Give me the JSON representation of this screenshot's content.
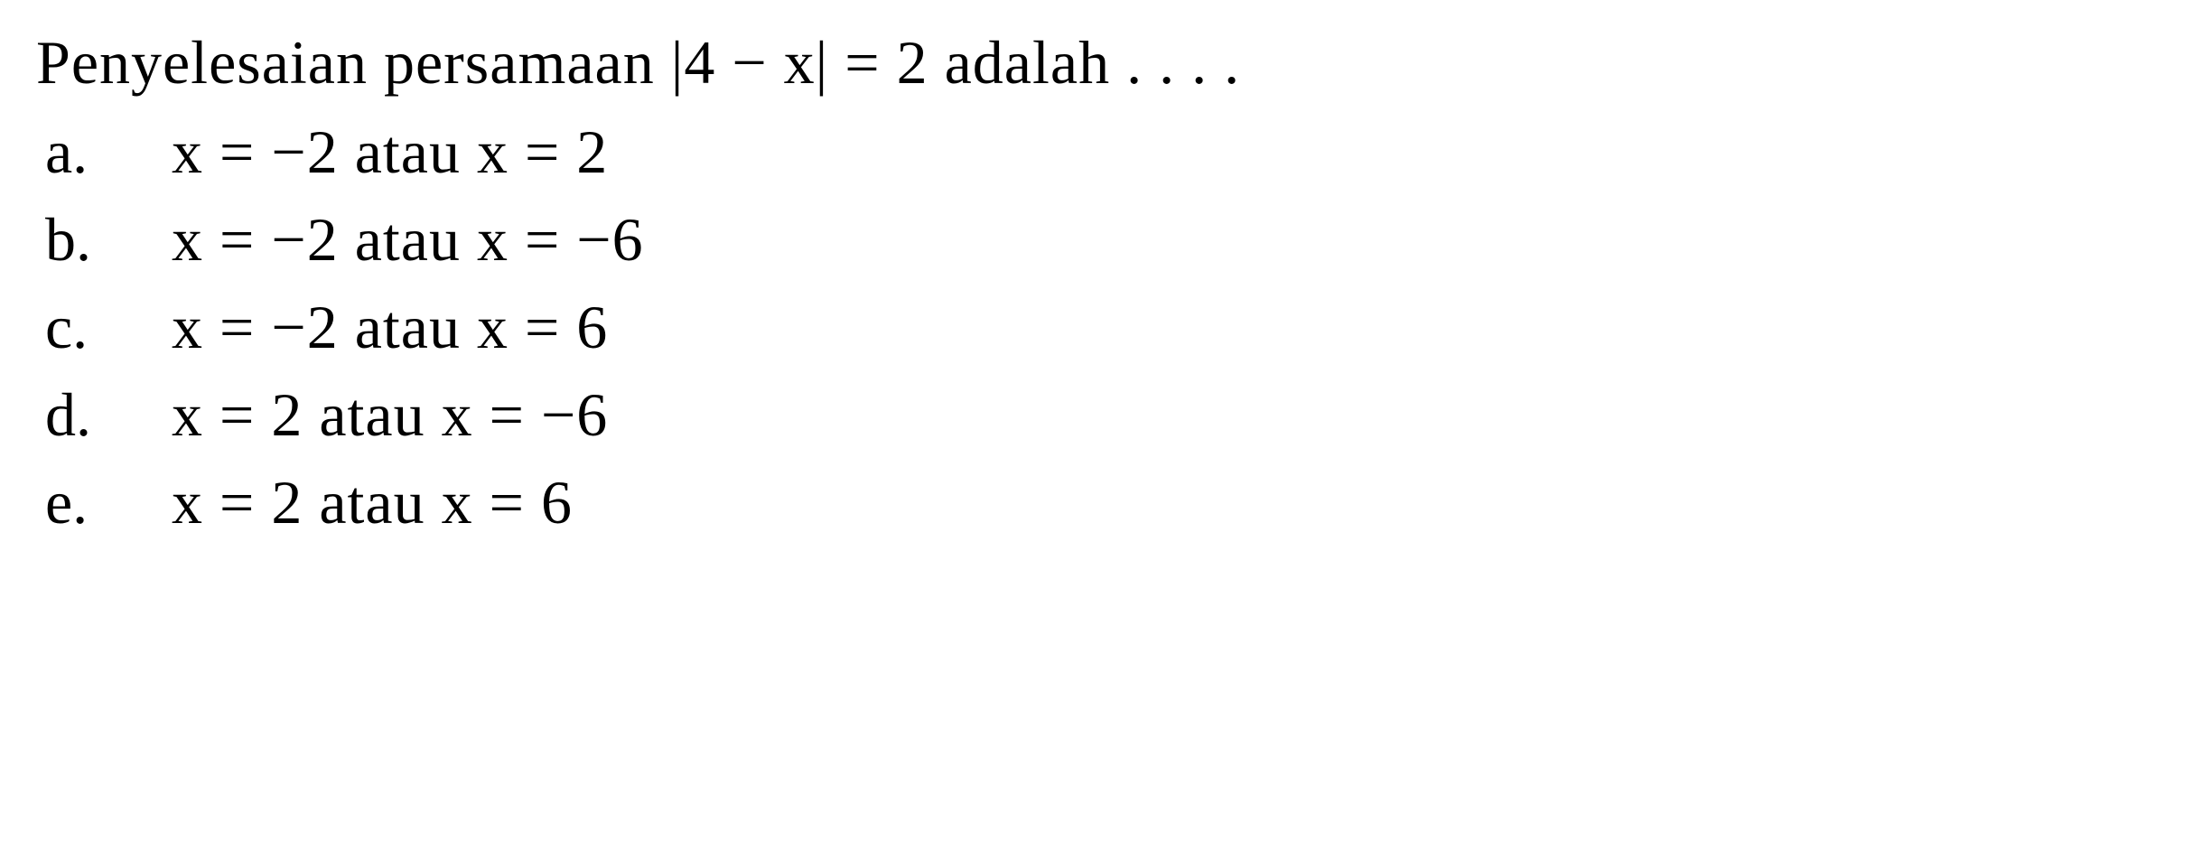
{
  "question": {
    "text": "Penyelesaian persamaan |4 − x| = 2 adalah . . . .",
    "fontsize": 68,
    "fontweight": 500,
    "color": "#000000"
  },
  "options": [
    {
      "letter": "a.",
      "text": "x = −2 atau x = 2"
    },
    {
      "letter": "b.",
      "text": "x = −2 atau x = −6"
    },
    {
      "letter": "c.",
      "text": "x = −2 atau x = 6"
    },
    {
      "letter": "d.",
      "text": "x = 2 atau x = −6"
    },
    {
      "letter": "e.",
      "text": "x = 2 atau x = 6"
    }
  ],
  "styling": {
    "background_color": "#ffffff",
    "text_color": "#000000",
    "font_family": "Times New Roman",
    "option_fontsize": 68,
    "option_fontweight": 500,
    "letter_width": 140
  }
}
